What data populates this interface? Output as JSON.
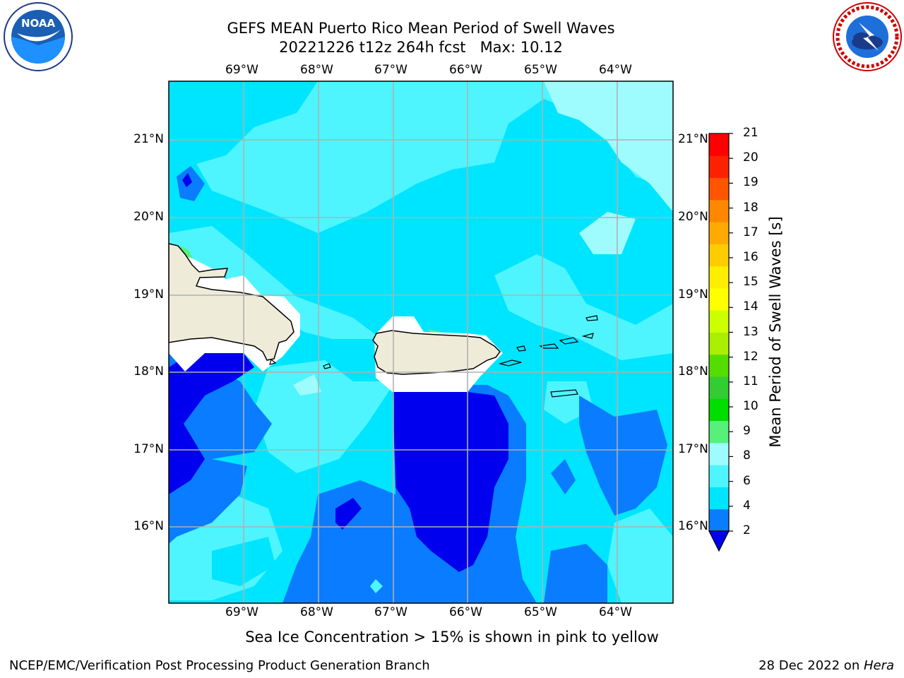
{
  "title": {
    "line1": "GEFS MEAN Puerto Rico Mean Period of Swell Waves",
    "line2": "20221226 t12z 264h fcst   Max: 10.12"
  },
  "logos": {
    "left": {
      "name": "NOAA",
      "ring_text": "NATIONAL OCEANIC AND ATMOSPHERIC ADMINISTRATION · U.S. DEPARTMENT OF COMMERCE"
    },
    "right": {
      "name": "NATIONAL WEATHER SERVICE"
    }
  },
  "map": {
    "lon_ticks": [
      "69°W",
      "68°W",
      "67°W",
      "66°W",
      "65°W",
      "64°W"
    ],
    "lat_ticks": [
      "21°N",
      "20°N",
      "19°N",
      "18°N",
      "17°N",
      "16°N"
    ],
    "colors": {
      "2-4": "#0a7cff",
      "below-2": "#0000ee",
      "4-6": "#00e5ff",
      "6-8": "#4ef5ff",
      "8-9": "#9efcff",
      "9-10": "#56f07a",
      "land": "#efebd9",
      "no-data": "#ffffff",
      "grid": "#b0b0b0"
    }
  },
  "colorbar": {
    "title": "Mean Period of Swell Waves [s]",
    "ticks": [
      "21",
      "20",
      "19",
      "18",
      "17",
      "16",
      "15",
      "14",
      "13",
      "12",
      "11",
      "10",
      "9",
      "8",
      "6",
      "4",
      "2"
    ],
    "colors": [
      "#0a7cff",
      "#00e5ff",
      "#4ef5ff",
      "#9efcff",
      "#56f07a",
      "#00dd00",
      "#33cc33",
      "#55dd00",
      "#aaee00",
      "#ccff00",
      "#ffff00",
      "#ffee00",
      "#ffcc00",
      "#ffaa00",
      "#ff8800",
      "#ff5500",
      "#ff2200",
      "#ff0000"
    ],
    "extend_color": "#0000ee"
  },
  "caption": "Sea Ice Concentration > 15% is shown in pink to yellow",
  "footer": {
    "left": "NCEP/EMC/Verification Post Processing Product Generation Branch",
    "right_prefix": "28 Dec 2022 on ",
    "right_host": "Hera"
  }
}
